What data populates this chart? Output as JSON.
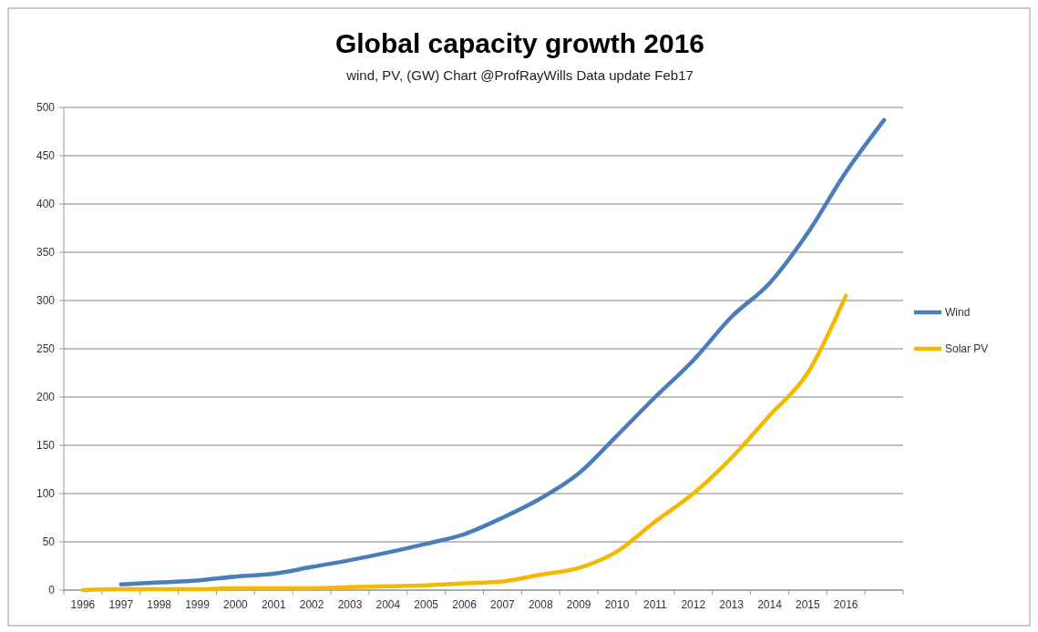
{
  "chart_data": {
    "type": "line",
    "title": "Global capacity growth 2016",
    "subtitle": "wind, PV, (GW) Chart @ProfRayWills  Data update Feb17",
    "categories": [
      "1996",
      "1997",
      "1998",
      "1999",
      "2000",
      "2001",
      "2002",
      "2003",
      "2004",
      "2005",
      "2006",
      "2007",
      "2008",
      "2009",
      "2010",
      "2011",
      "2012",
      "2013",
      "2014",
      "2015",
      "2016",
      null
    ],
    "series": [
      {
        "name": "Wind",
        "color": "#4a7ebb",
        "values": [
          null,
          6,
          8,
          10,
          14,
          17,
          24,
          31,
          39,
          48,
          58,
          75,
          95,
          121,
          160,
          200,
          238,
          283,
          318,
          370,
          433,
          487
        ]
      },
      {
        "name": "Solar PV",
        "color": "#f5b800",
        "values": [
          0,
          1,
          1,
          1,
          2,
          2,
          2,
          3,
          4,
          5,
          7,
          9,
          16,
          23,
          40,
          71,
          100,
          137,
          181,
          225,
          305,
          null
        ]
      }
    ],
    "ylim": [
      0,
      500
    ],
    "yticks": [
      0,
      50,
      100,
      150,
      200,
      250,
      300,
      350,
      400,
      450,
      500
    ],
    "grid": "y",
    "legend": "right",
    "marker": "none",
    "line_style": "solid"
  }
}
